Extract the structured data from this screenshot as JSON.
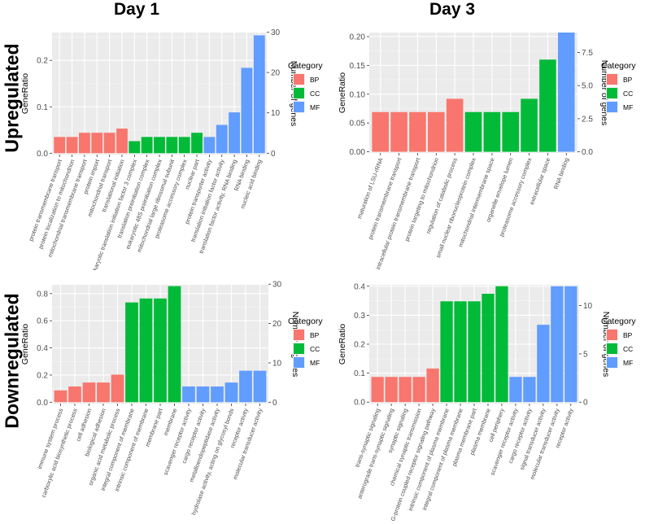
{
  "column_titles": [
    "Day 1",
    "Day 3"
  ],
  "row_titles": [
    "Upregulated",
    "Downregulated"
  ],
  "legend": {
    "title": "Category",
    "entries": [
      {
        "label": "BP",
        "color": "#F8766D"
      },
      {
        "label": "CC",
        "color": "#00BA38"
      },
      {
        "label": "MF",
        "color": "#619CFF"
      }
    ]
  },
  "axis_labels": {
    "left": "GeneRatio",
    "right": "Number of genes"
  },
  "chart_data": [
    {
      "type": "bar",
      "panel": "day1-up",
      "y_left_ticks": [
        "0.0",
        "0.1",
        "0.2"
      ],
      "y_left_tick_values": [
        0,
        0.1,
        0.2
      ],
      "y_right_ticks": [
        "0",
        "10",
        "20",
        "30"
      ],
      "y_right_tick_values": [
        0,
        10,
        20,
        30
      ],
      "ylim": [
        -0.003,
        0.26
      ],
      "genes_per_ratio": 115,
      "categories": [
        "protein transmembrane transport",
        "protein localization to mitochondrion",
        "mitochondrial transmembrane transport",
        "protein import",
        "mitochondrial transport",
        "translational initiation",
        "eukaryotic translation initiation factor 3 complex",
        "translation preinitiation complex",
        "eukaryotic 48S preinitiation complex",
        "mitochondrial large ribosomal subunit",
        "proteasome accessory complex",
        "nuclear part",
        "protein transporter activity",
        "translation initiation factor activity",
        "translation factor activity, RNA binding",
        "RNA binding",
        "nucleic acid binding"
      ],
      "groups": [
        "BP",
        "BP",
        "BP",
        "BP",
        "BP",
        "BP",
        "CC",
        "CC",
        "CC",
        "CC",
        "CC",
        "CC",
        "MF",
        "MF",
        "MF",
        "MF",
        "MF"
      ],
      "values": [
        0.035,
        0.035,
        0.044,
        0.044,
        0.044,
        0.053,
        0.026,
        0.035,
        0.035,
        0.035,
        0.035,
        0.044,
        0.035,
        0.061,
        0.088,
        0.184,
        0.254
      ]
    },
    {
      "type": "bar",
      "panel": "day3-up",
      "y_left_ticks": [
        "0.00",
        "0.05",
        "0.10",
        "0.15",
        "0.20"
      ],
      "y_left_tick_values": [
        0,
        0.05,
        0.1,
        0.15,
        0.2
      ],
      "y_right_ticks": [
        "0.0",
        "2.5",
        "5.0",
        "7.5"
      ],
      "y_right_tick_values": [
        0,
        2.5,
        5.0,
        7.5
      ],
      "ylim": [
        -0.002,
        0.207
      ],
      "genes_per_ratio": 43.5,
      "categories": [
        "maturation of LSU-rRNA",
        "protein transmembrane transport",
        "intracellular protein transmembrane transport",
        "protein targeting to mitochondrion",
        "regulation of catabolic process",
        "small nuclear ribonucleoprotein complex",
        "mitochondrial intermembrane space",
        "organelle envelope lumen",
        "proteasome accessory complex",
        "extracellular space",
        "RNA binding"
      ],
      "groups": [
        "BP",
        "BP",
        "BP",
        "BP",
        "BP",
        "CC",
        "CC",
        "CC",
        "CC",
        "CC",
        "MF"
      ],
      "values": [
        0.069,
        0.069,
        0.069,
        0.069,
        0.092,
        0.069,
        0.069,
        0.069,
        0.092,
        0.16,
        0.207
      ]
    },
    {
      "type": "bar",
      "panel": "day1-down",
      "y_left_ticks": [
        "0.0",
        "0.2",
        "0.4",
        "0.6",
        "0.8"
      ],
      "y_left_tick_values": [
        0,
        0.2,
        0.4,
        0.6,
        0.8
      ],
      "y_right_ticks": [
        "0",
        "10",
        "20",
        "30"
      ],
      "y_right_tick_values": [
        0,
        10,
        20,
        30
      ],
      "ylim": [
        -0.01,
        0.865
      ],
      "genes_per_ratio": 34.5,
      "categories": [
        "immune system process",
        "carboxylic acid biosynthetic process",
        "cell adhesion",
        "biological adhesion",
        "organic acid metabolic process",
        "integral component of membrane",
        "intrinsic component of membrane",
        "membrane part",
        "membrane",
        "scavenger receptor activity",
        "cargo receptor activity",
        "metalloendopeptidase activity",
        "hydrolase activity, acting on glycosyl bonds",
        "receptor activity",
        "molecular transducer activity"
      ],
      "groups": [
        "BP",
        "BP",
        "BP",
        "BP",
        "BP",
        "CC",
        "CC",
        "CC",
        "CC",
        "MF",
        "MF",
        "MF",
        "MF",
        "MF",
        "MF"
      ],
      "values": [
        0.087,
        0.116,
        0.145,
        0.145,
        0.203,
        0.735,
        0.764,
        0.764,
        0.855,
        0.116,
        0.116,
        0.116,
        0.145,
        0.232,
        0.232
      ]
    },
    {
      "type": "bar",
      "panel": "day3-down",
      "y_left_ticks": [
        "0.0",
        "0.1",
        "0.2",
        "0.3",
        "0.4"
      ],
      "y_left_tick_values": [
        0,
        0.1,
        0.2,
        0.3,
        0.4
      ],
      "y_right_ticks": [
        "0",
        "5",
        "10"
      ],
      "y_right_tick_values": [
        0,
        5,
        10
      ],
      "ylim": [
        -0.005,
        0.405
      ],
      "genes_per_ratio": 30,
      "categories": [
        "trans-synaptic signaling",
        "anterograde trans-synaptic signaling",
        "synaptic signaling",
        "chemical synaptic transmission",
        "G-protein coupled receptor signaling pathway",
        "intrinsic component of plasma membrane",
        "integral component of plasma membrane",
        "plasma membrane part",
        "plasma membrane",
        "cell periphery",
        "scavenger receptor activity",
        "cargo receptor activity",
        "signal transducer activity",
        "molecular transducer activity",
        "receptor activity"
      ],
      "groups": [
        "BP",
        "BP",
        "BP",
        "BP",
        "BP",
        "CC",
        "CC",
        "CC",
        "CC",
        "CC",
        "MF",
        "MF",
        "MF",
        "MF",
        "MF"
      ],
      "values": [
        0.087,
        0.087,
        0.087,
        0.087,
        0.116,
        0.348,
        0.348,
        0.348,
        0.374,
        0.4,
        0.087,
        0.087,
        0.267,
        0.4,
        0.4
      ]
    }
  ]
}
